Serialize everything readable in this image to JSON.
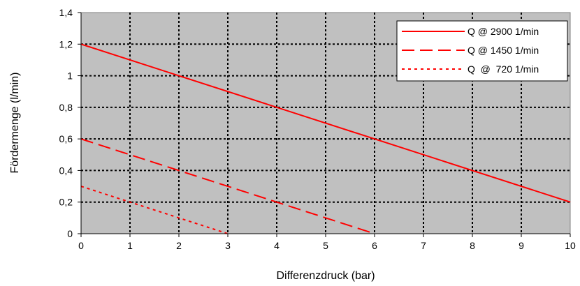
{
  "chart_data": {
    "type": "line",
    "xlabel": "Differenzdruck (bar)",
    "ylabel": "Fördermenge (l/min)",
    "xlim": [
      0,
      10
    ],
    "ylim": [
      0,
      1.4
    ],
    "xticks": [
      "0",
      "1",
      "2",
      "3",
      "4",
      "5",
      "6",
      "7",
      "8",
      "9",
      "10"
    ],
    "yticks": [
      "0",
      "0,2",
      "0,4",
      "0,6",
      "0,8",
      "1",
      "1,2",
      "1,4"
    ],
    "grid": true,
    "legend_position": "top-right",
    "background_color": "#c0c0c0",
    "series": [
      {
        "name": "Q @ 2900 1/min",
        "style": "solid",
        "color": "#ff0000",
        "x": [
          0,
          10
        ],
        "y": [
          1.2,
          0.2
        ]
      },
      {
        "name": "Q @ 1450 1/min",
        "style": "dashed",
        "color": "#ff0000",
        "x": [
          0,
          6
        ],
        "y": [
          0.6,
          0
        ]
      },
      {
        "name": "Q  @  720 1/min",
        "style": "dotted",
        "color": "#ff0000",
        "x": [
          0,
          3
        ],
        "y": [
          0.3,
          0
        ]
      }
    ]
  }
}
